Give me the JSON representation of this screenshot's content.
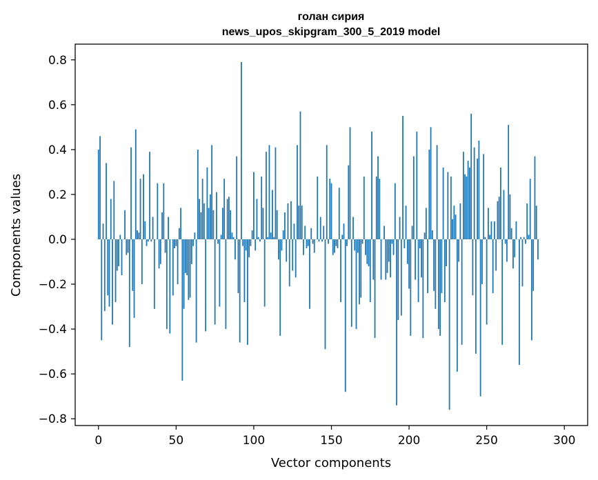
{
  "chart_data": {
    "type": "bar",
    "title": "голан сирия",
    "subtitle": "news_upos_skipgram_300_5_2019 model",
    "xlabel": "Vector components",
    "ylabel": "Components values",
    "xlim": [
      -15,
      315
    ],
    "ylim": [
      -0.83,
      0.87
    ],
    "xticks": [
      0,
      50,
      100,
      150,
      200,
      250,
      300
    ],
    "xtick_labels": [
      "0",
      "50",
      "100",
      "150",
      "200",
      "250",
      "300"
    ],
    "yticks": [
      -0.8,
      -0.6,
      -0.4,
      -0.2,
      0.0,
      0.2,
      0.4,
      0.6,
      0.8
    ],
    "ytick_labels": [
      "−0.8",
      "−0.6",
      "−0.4",
      "−0.2",
      "0.0",
      "0.2",
      "0.4",
      "0.6",
      "0.8"
    ],
    "bar_color": "#1f77b4",
    "grid": false,
    "values": [
      0.4,
      0.46,
      -0.45,
      0.07,
      -0.32,
      0.34,
      -0.25,
      -0.3,
      0.18,
      -0.38,
      0.26,
      -0.28,
      -0.14,
      -0.12,
      0.02,
      -0.16,
      0.0,
      0.13,
      -0.07,
      -0.06,
      -0.48,
      0.41,
      -0.23,
      -0.35,
      0.49,
      0.04,
      0.03,
      0.27,
      -0.2,
      0.29,
      0.08,
      -0.03,
      -0.01,
      0.39,
      -0.01,
      0.1,
      -0.31,
      0.0,
      0.25,
      -0.13,
      -0.11,
      0.12,
      0.25,
      -0.06,
      -0.4,
      0.1,
      -0.42,
      0.0,
      -0.25,
      -0.04,
      -0.03,
      -0.2,
      0.05,
      0.14,
      -0.63,
      -0.31,
      -0.15,
      -0.16,
      -0.27,
      -0.26,
      -0.11,
      -0.03,
      0.03,
      -0.46,
      0.4,
      0.18,
      0.12,
      0.27,
      0.16,
      -0.41,
      0.32,
      0.14,
      0.2,
      0.42,
      0.13,
      -0.38,
      0.21,
      -0.02,
      -0.3,
      0.02,
      0.14,
      0.27,
      -0.4,
      0.18,
      0.19,
      0.13,
      0.03,
      0.01,
      -0.09,
      0.37,
      -0.24,
      -0.46,
      0.79,
      -0.03,
      -0.28,
      -0.05,
      -0.47,
      -0.08,
      -0.03,
      0.04,
      0.3,
      -0.05,
      0.18,
      0.01,
      -0.01,
      0.28,
      0.14,
      -0.3,
      0.39,
      0.01,
      0.42,
      0.03,
      0.22,
      0.01,
      0.41,
      0.13,
      -0.09,
      -0.43,
      -0.05,
      0.04,
      0.12,
      -0.1,
      0.16,
      -0.21,
      0.17,
      -0.14,
      0.07,
      -0.17,
      0.42,
      0.15,
      0.57,
      0.15,
      -0.07,
      0.06,
      -0.04,
      -0.03,
      -0.31,
      0.05,
      -0.02,
      -0.06,
      0.0,
      0.28,
      -0.01,
      0.1,
      -0.01,
      0.06,
      -0.49,
      0.42,
      -0.02,
      0.27,
      0.25,
      -0.07,
      -0.06,
      -0.03,
      -0.04,
      0.23,
      -0.28,
      0.02,
      0.07,
      -0.68,
      -0.03,
      0.33,
      0.5,
      -0.39,
      0.1,
      -0.05,
      -0.4,
      -0.06,
      -0.29,
      -0.26,
      -0.02,
      0.28,
      -0.07,
      -0.11,
      -0.12,
      -0.28,
      0.48,
      -0.18,
      -0.44,
      0.28,
      0.37,
      0.27,
      -0.18,
      0.0,
      0.06,
      -0.18,
      -0.15,
      -0.1,
      -0.17,
      -0.02,
      -0.07,
      0.25,
      -0.74,
      -0.36,
      0.1,
      -0.34,
      0.55,
      -0.04,
      0.15,
      -0.11,
      -0.22,
      -0.43,
      0.06,
      0.37,
      -0.18,
      0.48,
      -0.28,
      -0.04,
      -0.17,
      -0.44,
      0.03,
      0.14,
      -0.24,
      0.4,
      0.5,
      0.04,
      -0.23,
      -0.31,
      0.42,
      -0.4,
      -0.43,
      -0.24,
      0.32,
      -0.28,
      -0.12,
      0.3,
      -0.76,
      0.28,
      0.09,
      0.15,
      0.11,
      -0.59,
      -0.1,
      0.16,
      -0.47,
      0.39,
      0.29,
      0.28,
      0.35,
      0.32,
      0.56,
      -0.25,
      0.41,
      -0.51,
      0.36,
      0.44,
      -0.7,
      -0.2,
      0.38,
      0.01,
      -0.38,
      0.14,
      0.02,
      0.08,
      -0.24,
      0.08,
      -0.14,
      0.17,
      0.19,
      0.32,
      -0.47,
      0.22,
      -0.02,
      -0.1,
      0.51,
      0.2,
      0.05,
      -0.13,
      -0.08,
      0.08,
      0.0,
      -0.56,
      0.01,
      -0.21,
      0.01,
      -0.02,
      0.16,
      0.02,
      0.27,
      -0.45,
      -0.23,
      0.37,
      0.15,
      -0.09
    ]
  }
}
